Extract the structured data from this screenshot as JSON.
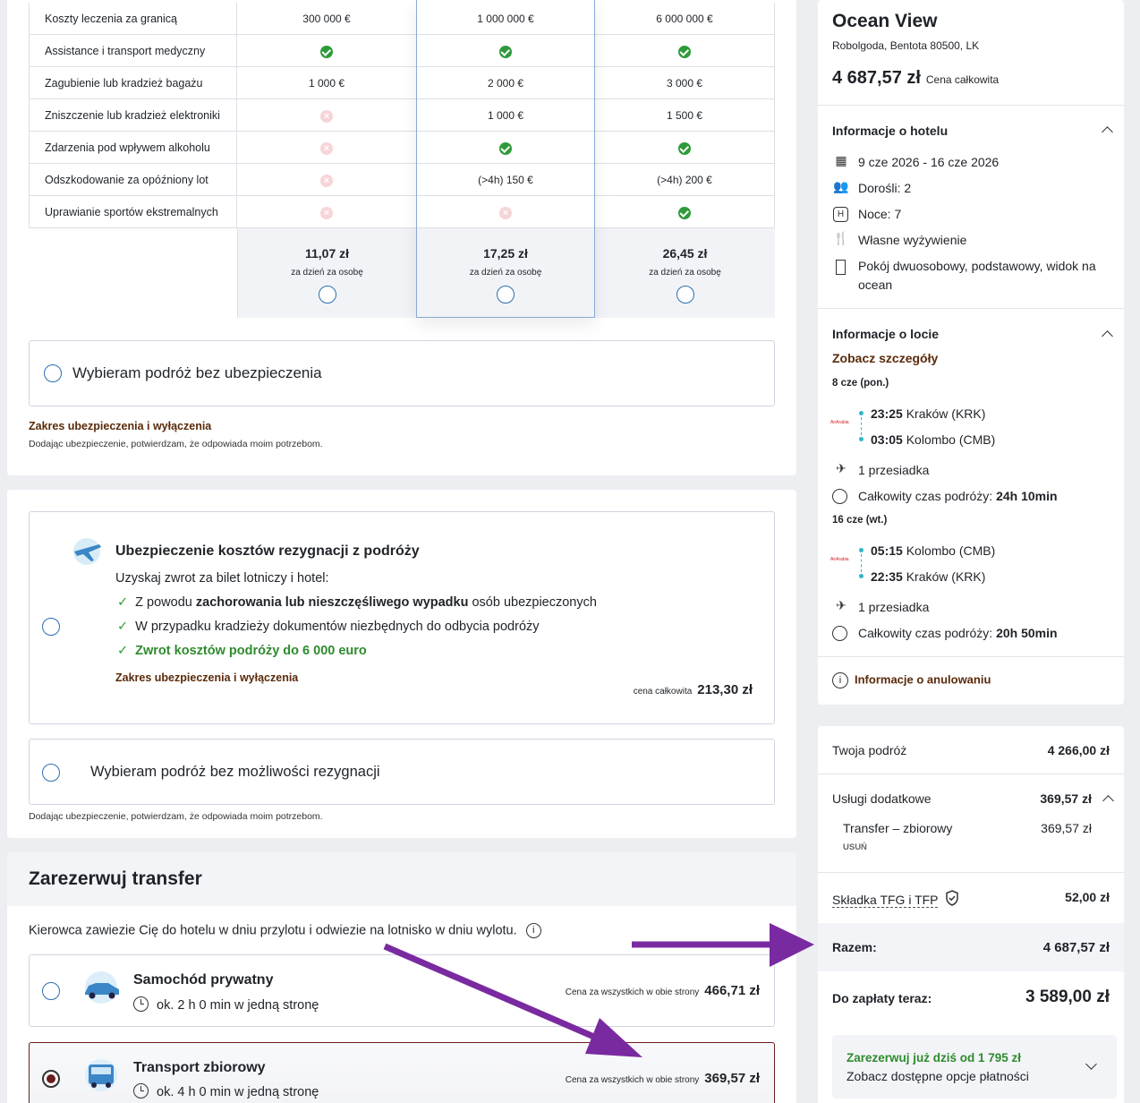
{
  "coverage_table": {
    "rows": [
      {
        "label": "Koszty leczenia za granicą",
        "c1": "300 000 €",
        "c2": "1 000 000 €",
        "c3": "6 000 000 €"
      },
      {
        "label": "Assistance i transport medyczny",
        "c1": "check",
        "c2": "check",
        "c3": "check"
      },
      {
        "label": "Zagubienie lub kradzież bagażu",
        "c1": "1 000 €",
        "c2": "2 000 €",
        "c3": "3 000 €"
      },
      {
        "label": "Zniszczenie lub kradzież elektroniki",
        "c1": "cross",
        "c2": "1 000 €",
        "c3": "1 500 €"
      },
      {
        "label": "Zdarzenia pod wpływem alkoholu",
        "c1": "cross",
        "c2": "check",
        "c3": "check"
      },
      {
        "label": "Odszkodowanie za opóźniony lot",
        "c1": "cross",
        "c2": "(>4h) 150 €",
        "c3": "(>4h) 200 €"
      },
      {
        "label": "Uprawianie sportów ekstremalnych",
        "c1": "cross",
        "c2": "cross",
        "c3": "check"
      }
    ],
    "plans": [
      {
        "price": "11,07 zł",
        "per": "za dzień za osobę"
      },
      {
        "price": "17,25 zł",
        "per": "za dzień za osobę"
      },
      {
        "price": "26,45 zł",
        "per": "za dzień za osobę"
      }
    ],
    "no_insurance": "Wybieram podróż bez ubezpieczenia",
    "scope_link": "Zakres ubezpieczenia i wyłączenia",
    "disclaimer": "Dodając ubezpieczenie, potwierdzam, że odpowiada moim potrzebom."
  },
  "cancellation": {
    "title": "Ubezpieczenie kosztów rezygnacji z podróży",
    "intro": "Uzyskaj zwrot za bilet lotniczy i hotel:",
    "b1_pre": "Z powodu ",
    "b1_bold": "zachorowania lub nieszczęśliwego wypadku",
    "b1_post": " osób ubezpieczonych",
    "b2": "W przypadku kradzieży dokumentów niezbędnych do odbycia podróży",
    "b3": "Zwrot kosztów podróży do 6 000 euro",
    "scope_link": "Zakres ubezpieczenia i wyłączenia",
    "total_label": "cena całkowita",
    "total": "213,30 zł",
    "no_cancel": "Wybieram podróż bez możliwości rezygnacji",
    "disclaimer": "Dodając ubezpieczenie, potwierdzam, że odpowiada moim potrzebom."
  },
  "transfer": {
    "title": "Zarezerwuj transfer",
    "desc": "Kierowca zawiezie Cię do hotelu w dniu przylotu i odwiezie na lotnisko w dniu wylotu.",
    "options": [
      {
        "name": "Samochód prywatny",
        "time": "ok. 2 h 0 min w jedną stronę",
        "price_label": "Cena za wszystkich w obie strony",
        "price": "466,71 zł"
      },
      {
        "name": "Transport zbiorowy",
        "time": "ok. 4 h 0 min w jedną stronę",
        "price_label": "Cena za wszystkich w obie strony",
        "price": "369,57 zł"
      }
    ]
  },
  "hotel": {
    "name": "Ocean View",
    "address": "Robolgoda, Bentota 80500, LK",
    "total": "4 687,57 zł",
    "total_label": "Cena całkowita",
    "info_title": "Informacje o hotelu",
    "dates": "9 cze 2026 - 16 cze 2026",
    "adults": "Dorośli: 2",
    "nights": "Noce: 7",
    "board": "Własne wyżywienie",
    "room": "Pokój dwuosobowy, podstawowy, widok na ocean"
  },
  "flight": {
    "title": "Informacje o locie",
    "details_link": "Zobacz szczegóły",
    "airline_logo_text": "AirArabia",
    "outbound": {
      "date": "8 cze (pon.)",
      "dep_time": "23:25",
      "dep": "Kraków (KRK)",
      "arr_time": "03:05",
      "arr": "Kolombo (CMB)",
      "stops": "1 przesiadka",
      "duration_label": "Całkowity czas podróży:",
      "duration": "24h 10min"
    },
    "inbound": {
      "date": "16 cze (wt.)",
      "dep_time": "05:15",
      "dep": "Kolombo (CMB)",
      "arr_time": "22:35",
      "arr": "Kraków (KRK)",
      "stops": "1 przesiadka",
      "duration_label": "Całkowity czas podróży:",
      "duration": "20h 50min"
    },
    "cancel_info": "Informacje o anulowaniu"
  },
  "summary": {
    "trip_label": "Twoja podróż",
    "trip": "4 266,00 zł",
    "extras_label": "Usługi dodatkowe",
    "extras": "369,57 zł",
    "transfer_label": "Transfer – zbiorowy",
    "transfer": "369,57 zł",
    "remove": "USUŃ",
    "tfg_label": "Składka TFG i TFP",
    "tfg": "52,00 zł",
    "total_label": "Razem:",
    "total": "4 687,57 zł",
    "due_label": "Do zapłaty teraz:",
    "due": "3 589,00 zł",
    "promo_title": "Zarezerwuj już dziś od 1 795 zł",
    "promo_sub": "Zobacz dostępne opcje płatności"
  },
  "colors": {
    "accent_green": "#2e9b3a",
    "link_brown": "#5a2a0a",
    "annotation_arrow": "#7a2aa0"
  }
}
